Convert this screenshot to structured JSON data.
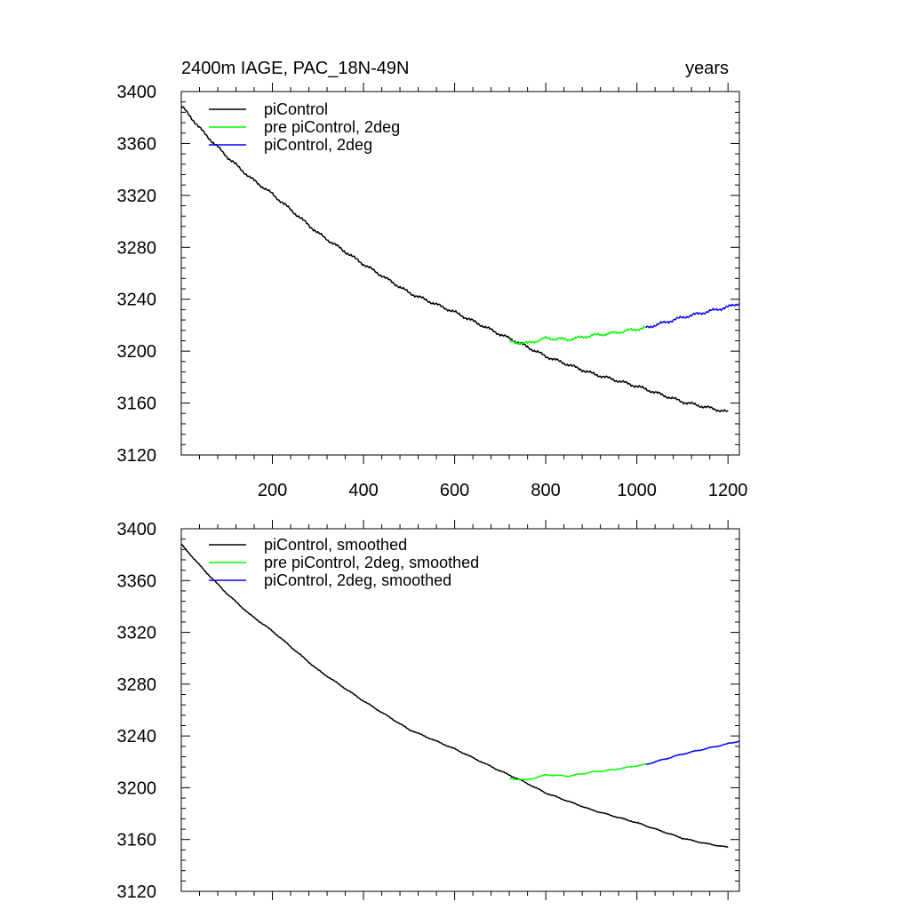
{
  "panels": [
    {
      "id": "top",
      "title_left": "2400m IAGE, PAC_18N-49N",
      "title_right": "years",
      "legend": [
        {
          "label": "piControl",
          "color": "#000000"
        },
        {
          "label": "pre piControl, 2deg",
          "color": "#00ff00"
        },
        {
          "label": "piControl, 2deg",
          "color": "#0000ff"
        }
      ],
      "show_x_tick_labels": true
    },
    {
      "id": "bottom",
      "title_left": "",
      "title_right": "",
      "legend": [
        {
          "label": "piControl, smoothed",
          "color": "#000000"
        },
        {
          "label": "pre piControl, 2deg, smoothed",
          "color": "#00ff00"
        },
        {
          "label": "piControl, 2deg, smoothed",
          "color": "#0000ff"
        }
      ],
      "show_x_tick_labels": false
    }
  ],
  "chart_data": [
    {
      "type": "line",
      "title": "2400m IAGE, PAC_18N-49N",
      "xlabel": "",
      "ylabel": "",
      "units_label": "years",
      "xlim": [
        0,
        1225
      ],
      "ylim": [
        3120,
        3400
      ],
      "x_ticks": [
        200,
        400,
        600,
        800,
        1000,
        1200
      ],
      "y_ticks": [
        3120,
        3160,
        3200,
        3240,
        3280,
        3320,
        3360,
        3400
      ],
      "grid": false,
      "legend_position": "top-left",
      "noise": 1.4,
      "series": [
        {
          "name": "piControl",
          "color": "#000000",
          "x": [
            0,
            50,
            100,
            150,
            200,
            300,
            400,
            500,
            600,
            700,
            750,
            800,
            900,
            1000,
            1100,
            1150,
            1200
          ],
          "y": [
            3389,
            3368,
            3350,
            3334,
            3321,
            3291,
            3267,
            3245,
            3230,
            3213,
            3205,
            3196,
            3183,
            3173,
            3161,
            3157,
            3153
          ]
        },
        {
          "name": "pre piControl, 2deg",
          "color": "#00ff00",
          "x": [
            720,
            760,
            800,
            850,
            900,
            950,
            1000,
            1020
          ],
          "y": [
            3207,
            3206,
            3210,
            3209,
            3212,
            3214,
            3217,
            3218
          ]
        },
        {
          "name": "piControl, 2deg",
          "color": "#0000ff",
          "x": [
            1020,
            1060,
            1100,
            1150,
            1200,
            1225
          ],
          "y": [
            3218,
            3222,
            3226,
            3230,
            3234,
            3237
          ]
        }
      ]
    },
    {
      "type": "line",
      "title": "",
      "xlabel": "",
      "ylabel": "",
      "xlim": [
        0,
        1225
      ],
      "ylim": [
        3120,
        3400
      ],
      "x_ticks": [
        200,
        400,
        600,
        800,
        1000,
        1200
      ],
      "y_ticks": [
        3120,
        3160,
        3200,
        3240,
        3280,
        3320,
        3360,
        3400
      ],
      "grid": false,
      "legend_position": "top-left",
      "noise": 0.5,
      "series": [
        {
          "name": "piControl, smoothed",
          "color": "#000000",
          "x": [
            0,
            50,
            100,
            150,
            200,
            300,
            400,
            500,
            600,
            700,
            750,
            800,
            900,
            1000,
            1100,
            1150,
            1200
          ],
          "y": [
            3388,
            3368,
            3350,
            3334,
            3321,
            3291,
            3267,
            3245,
            3230,
            3213,
            3205,
            3196,
            3183,
            3173,
            3161,
            3157,
            3154
          ]
        },
        {
          "name": "pre piControl, 2deg, smoothed",
          "color": "#00ff00",
          "x": [
            720,
            760,
            800,
            850,
            900,
            950,
            1000,
            1020
          ],
          "y": [
            3207,
            3206,
            3210,
            3209,
            3212,
            3214,
            3217,
            3218
          ]
        },
        {
          "name": "piControl, 2deg, smoothed",
          "color": "#0000ff",
          "x": [
            1020,
            1060,
            1100,
            1150,
            1200,
            1225
          ],
          "y": [
            3218,
            3222,
            3226,
            3230,
            3234,
            3236
          ]
        }
      ]
    }
  ]
}
